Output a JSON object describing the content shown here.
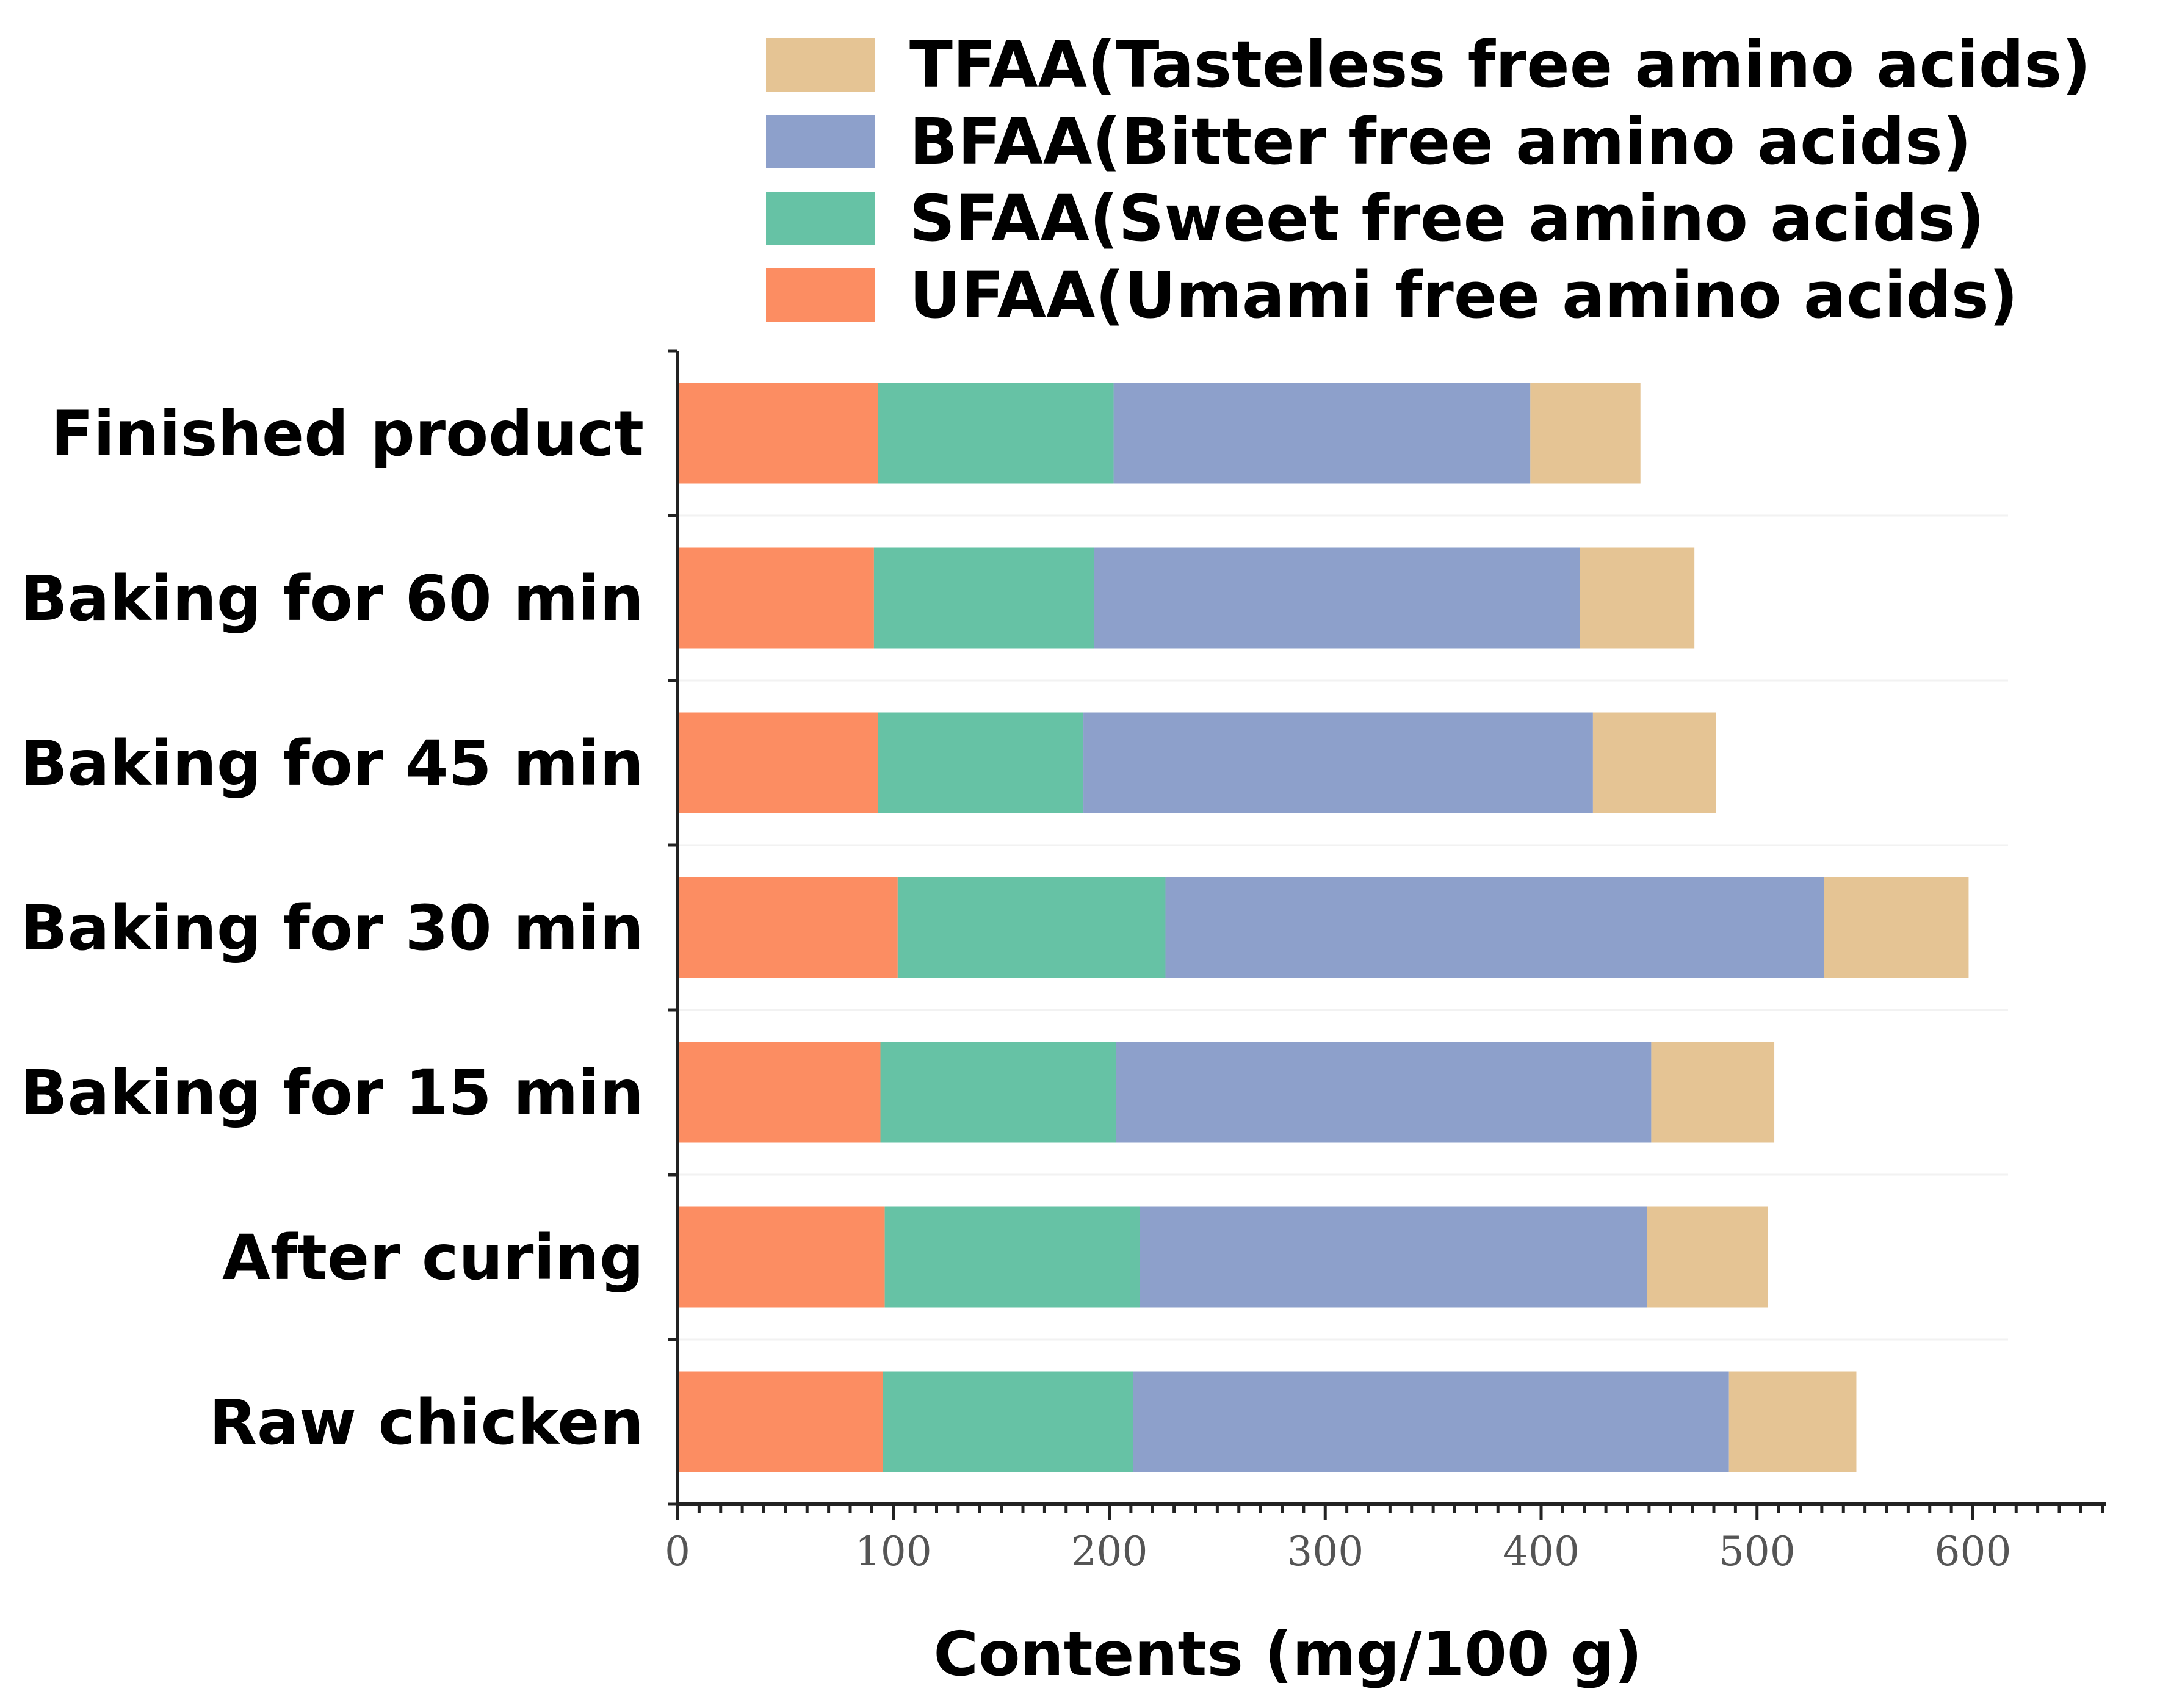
{
  "chart_data": {
    "type": "bar",
    "orientation": "horizontal",
    "stacked": true,
    "title": "",
    "xlabel": "Contents (mg/100 g)",
    "ylabel": "",
    "xlim": [
      0,
      660
    ],
    "x_ticks": [
      0,
      100,
      200,
      300,
      400,
      500,
      600
    ],
    "grid": true,
    "legend_position": "top-right",
    "categories": [
      "Raw chicken",
      "After curing",
      "Baking for 15 min",
      "Baking for 30 min",
      "Baking for 45 min",
      "Baking for 60 min",
      "Finished product"
    ],
    "series": [
      {
        "name": "UFAA(Umami free amino acids)",
        "color": "#fc8d62",
        "values": [
          95,
          96,
          94,
          102,
          93,
          91,
          93
        ]
      },
      {
        "name": "SFAA(Sweet free amino acids)",
        "color": "#66c2a5",
        "values": [
          116,
          118,
          109,
          124,
          95,
          102,
          109
        ]
      },
      {
        "name": "BFAA(Bitter free amino acids)",
        "color": "#8da0cb",
        "values": [
          276,
          235,
          248,
          305,
          236,
          225,
          193
        ]
      },
      {
        "name": "TFAA(Tasteless free amino acids)",
        "color": "#e5c494",
        "values": [
          59,
          56,
          57,
          67,
          57,
          53,
          51
        ]
      }
    ],
    "legend_order": [
      3,
      2,
      1,
      0
    ]
  }
}
